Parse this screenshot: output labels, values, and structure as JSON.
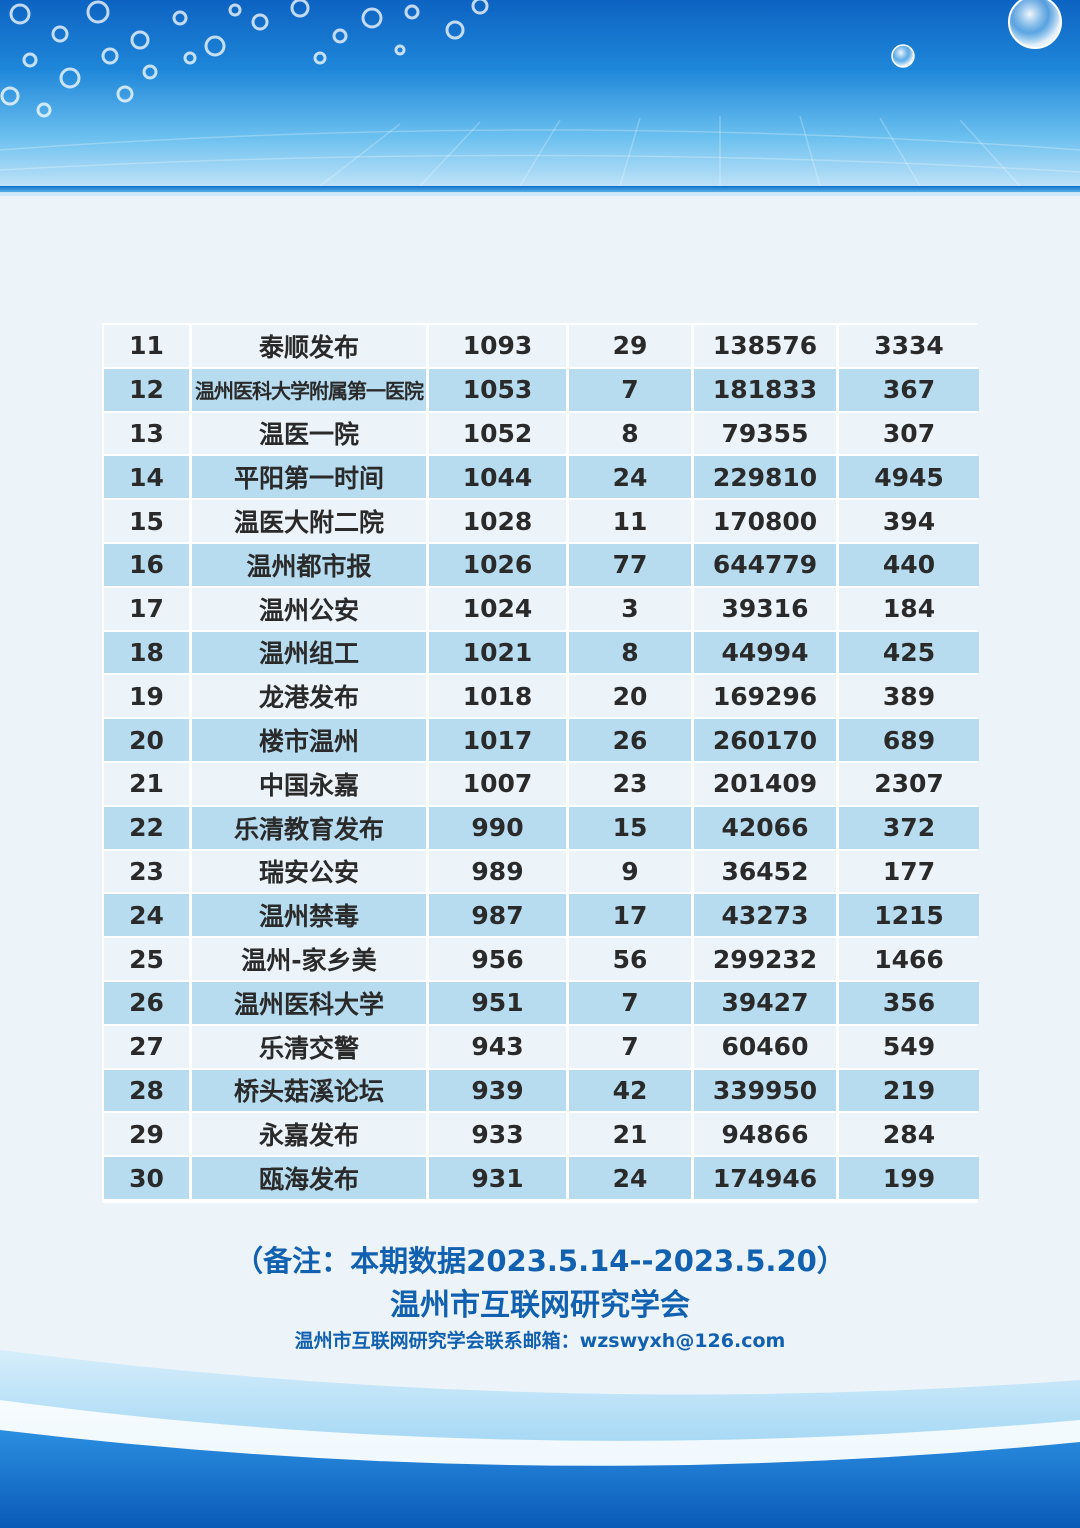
{
  "rows": [
    {
      "rank": "11",
      "name": "泰顺发布",
      "c3": "1093",
      "c4": "29",
      "c5": "138576",
      "c6": "3334"
    },
    {
      "rank": "12",
      "name": "温州医科大学附属第一医院",
      "c3": "1053",
      "c4": "7",
      "c5": "181833",
      "c6": "367"
    },
    {
      "rank": "13",
      "name": "温医一院",
      "c3": "1052",
      "c4": "8",
      "c5": "79355",
      "c6": "307"
    },
    {
      "rank": "14",
      "name": "平阳第一时间",
      "c3": "1044",
      "c4": "24",
      "c5": "229810",
      "c6": "4945"
    },
    {
      "rank": "15",
      "name": "温医大附二院",
      "c3": "1028",
      "c4": "11",
      "c5": "170800",
      "c6": "394"
    },
    {
      "rank": "16",
      "name": "温州都市报",
      "c3": "1026",
      "c4": "77",
      "c5": "644779",
      "c6": "440"
    },
    {
      "rank": "17",
      "name": "温州公安",
      "c3": "1024",
      "c4": "3",
      "c5": "39316",
      "c6": "184"
    },
    {
      "rank": "18",
      "name": "温州组工",
      "c3": "1021",
      "c4": "8",
      "c5": "44994",
      "c6": "425"
    },
    {
      "rank": "19",
      "name": "龙港发布",
      "c3": "1018",
      "c4": "20",
      "c5": "169296",
      "c6": "389"
    },
    {
      "rank": "20",
      "name": "楼市温州",
      "c3": "1017",
      "c4": "26",
      "c5": "260170",
      "c6": "689"
    },
    {
      "rank": "21",
      "name": "中国永嘉",
      "c3": "1007",
      "c4": "23",
      "c5": "201409",
      "c6": "2307"
    },
    {
      "rank": "22",
      "name": "乐清教育发布",
      "c3": "990",
      "c4": "15",
      "c5": "42066",
      "c6": "372"
    },
    {
      "rank": "23",
      "name": "瑞安公安",
      "c3": "989",
      "c4": "9",
      "c5": "36452",
      "c6": "177"
    },
    {
      "rank": "24",
      "name": "温州禁毒",
      "c3": "987",
      "c4": "17",
      "c5": "43273",
      "c6": "1215"
    },
    {
      "rank": "25",
      "name": "温州-家乡美",
      "c3": "956",
      "c4": "56",
      "c5": "299232",
      "c6": "1466"
    },
    {
      "rank": "26",
      "name": "温州医科大学",
      "c3": "951",
      "c4": "7",
      "c5": "39427",
      "c6": "356"
    },
    {
      "rank": "27",
      "name": "乐清交警",
      "c3": "943",
      "c4": "7",
      "c5": "60460",
      "c6": "549"
    },
    {
      "rank": "28",
      "name": "桥头菇溪论坛",
      "c3": "939",
      "c4": "42",
      "c5": "339950",
      "c6": "219"
    },
    {
      "rank": "29",
      "name": "永嘉发布",
      "c3": "933",
      "c4": "21",
      "c5": "94866",
      "c6": "284"
    },
    {
      "rank": "30",
      "name": "瓯海发布",
      "c3": "931",
      "c4": "24",
      "c5": "174946",
      "c6": "199"
    }
  ],
  "note": {
    "period": "（备注：本期数据2023.5.14--2023.5.20）",
    "org": "温州市互联网研究学会",
    "contact": "温州市互联网研究学会联系邮箱：wzswyxh@126.com"
  },
  "colors": {
    "row_light": "#ecf4fa",
    "row_dark": "#b7dcef",
    "note_text": "#1260b0",
    "header_blue": "#1e86d9"
  }
}
